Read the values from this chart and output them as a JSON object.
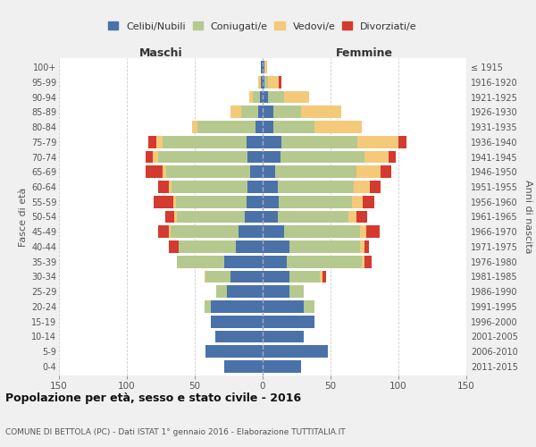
{
  "age_groups": [
    "0-4",
    "5-9",
    "10-14",
    "15-19",
    "20-24",
    "25-29",
    "30-34",
    "35-39",
    "40-44",
    "45-49",
    "50-54",
    "55-59",
    "60-64",
    "65-69",
    "70-74",
    "75-79",
    "80-84",
    "85-89",
    "90-94",
    "95-99",
    "100+"
  ],
  "birth_years": [
    "2011-2015",
    "2006-2010",
    "2001-2005",
    "1996-2000",
    "1991-1995",
    "1986-1990",
    "1981-1985",
    "1976-1980",
    "1971-1975",
    "1966-1970",
    "1961-1965",
    "1956-1960",
    "1951-1955",
    "1946-1950",
    "1941-1945",
    "1936-1940",
    "1931-1935",
    "1926-1930",
    "1921-1925",
    "1916-1920",
    "≤ 1915"
  ],
  "males": {
    "celibi": [
      28,
      42,
      35,
      38,
      38,
      26,
      24,
      28,
      20,
      18,
      13,
      12,
      11,
      9,
      11,
      12,
      5,
      3,
      2,
      1,
      1
    ],
    "coniugati": [
      0,
      0,
      0,
      0,
      5,
      8,
      18,
      35,
      42,
      50,
      50,
      52,
      56,
      62,
      66,
      62,
      43,
      13,
      5,
      0,
      0
    ],
    "vedovi": [
      0,
      0,
      0,
      0,
      0,
      0,
      1,
      0,
      0,
      1,
      2,
      2,
      2,
      3,
      4,
      4,
      4,
      8,
      3,
      2,
      0
    ],
    "divorziati": [
      0,
      0,
      0,
      0,
      0,
      0,
      0,
      0,
      7,
      8,
      7,
      14,
      8,
      12,
      5,
      6,
      0,
      0,
      0,
      0,
      0
    ]
  },
  "females": {
    "nubili": [
      28,
      48,
      30,
      38,
      30,
      20,
      20,
      18,
      20,
      16,
      11,
      12,
      11,
      9,
      13,
      14,
      8,
      8,
      4,
      1,
      1
    ],
    "coniugate": [
      0,
      0,
      0,
      0,
      8,
      10,
      22,
      55,
      52,
      56,
      52,
      54,
      56,
      60,
      62,
      56,
      30,
      20,
      12,
      3,
      0
    ],
    "vedove": [
      0,
      0,
      0,
      0,
      0,
      0,
      2,
      2,
      3,
      4,
      6,
      8,
      12,
      18,
      18,
      30,
      35,
      30,
      18,
      8,
      2
    ],
    "divorziate": [
      0,
      0,
      0,
      0,
      0,
      0,
      3,
      5,
      3,
      10,
      8,
      8,
      8,
      8,
      5,
      6,
      0,
      0,
      0,
      2,
      0
    ]
  },
  "colors": {
    "celibi": "#4a72a8",
    "coniugati": "#b5c98e",
    "vedovi": "#f5c97a",
    "divorziati": "#d43a2f"
  },
  "legend_labels": [
    "Celibi/Nubili",
    "Coniugati/e",
    "Vedovi/e",
    "Divorziati/e"
  ],
  "title": "Popolazione per età, sesso e stato civile - 2016",
  "subtitle": "COMUNE DI BETTOLA (PC) - Dati ISTAT 1° gennaio 2016 - Elaborazione TUTTITALIA.IT",
  "xlabel_left": "Maschi",
  "xlabel_right": "Femmine",
  "ylabel_left": "Fasce di età",
  "ylabel_right": "Anni di nascita",
  "xlim": 150,
  "bg_color": "#f0f0f0",
  "plot_bg": "#ffffff",
  "grid_color": "#cccccc"
}
